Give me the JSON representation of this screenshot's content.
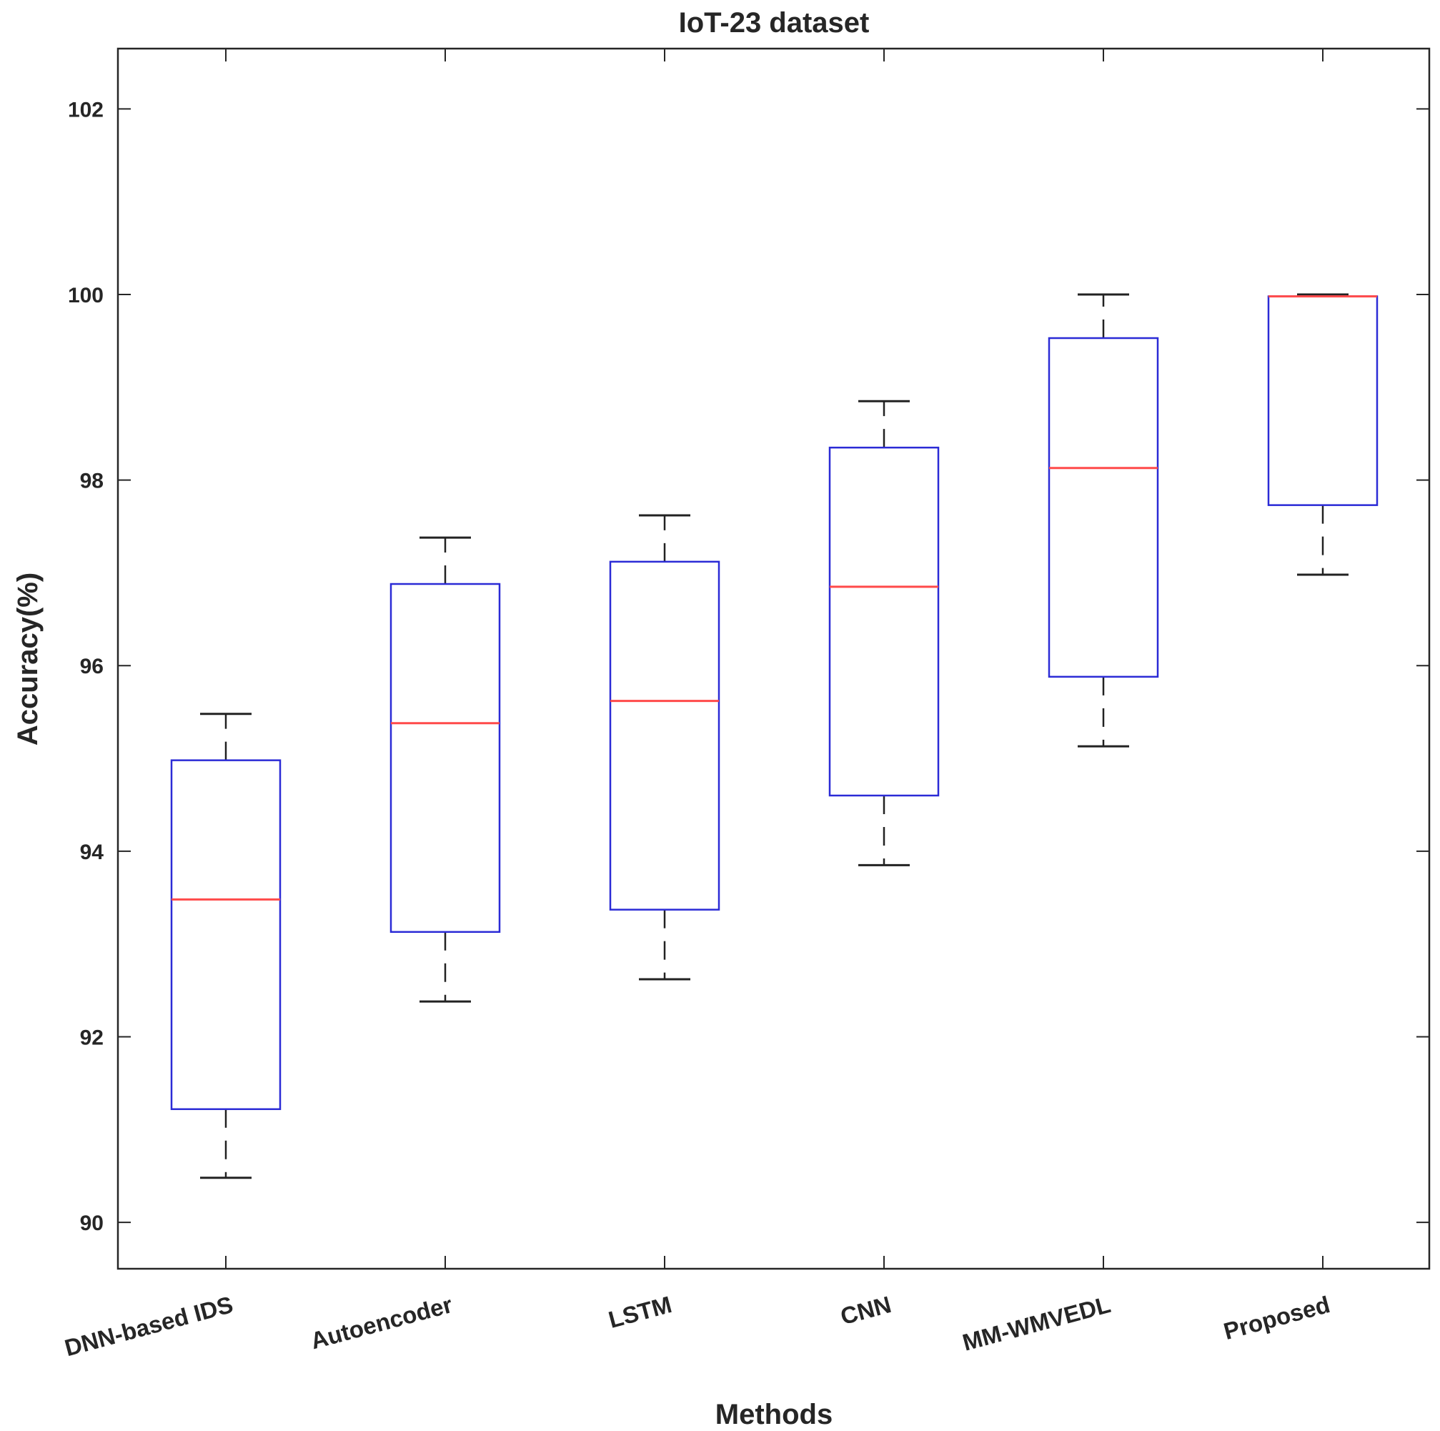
{
  "chart_data": {
    "type": "boxplot",
    "title": "IoT-23 dataset",
    "xlabel": "Methods",
    "ylabel": "Accuracy(%)",
    "ylim": [
      89.5,
      102.65
    ],
    "yticks": [
      90,
      92,
      94,
      96,
      98,
      100,
      102
    ],
    "grid": false,
    "categories": [
      "DNN-based IDS",
      "Autoencoder",
      "LSTM",
      "CNN",
      "MM-WMVEDL",
      "Proposed"
    ],
    "series": [
      {
        "boxes": [
          {
            "min": 90.48,
            "q1": 91.22,
            "median": 93.48,
            "q3": 94.98,
            "max": 95.48
          },
          {
            "min": 92.38,
            "q1": 93.13,
            "median": 95.38,
            "q3": 96.88,
            "max": 97.38
          },
          {
            "min": 92.62,
            "q1": 93.37,
            "median": 95.62,
            "q3": 97.12,
            "max": 97.62
          },
          {
            "min": 93.85,
            "q1": 94.6,
            "median": 96.85,
            "q3": 98.35,
            "max": 98.85
          },
          {
            "min": 95.13,
            "q1": 95.88,
            "median": 98.13,
            "q3": 99.53,
            "max": 100.0
          },
          {
            "min": 96.98,
            "q1": 97.73,
            "median": 99.98,
            "q3": 99.98,
            "max": 100.0
          }
        ]
      }
    ],
    "colors": {
      "box": "#2b2bd6",
      "median": "#ff4a4a",
      "whisker": "#222222",
      "axes": "#262626"
    }
  }
}
